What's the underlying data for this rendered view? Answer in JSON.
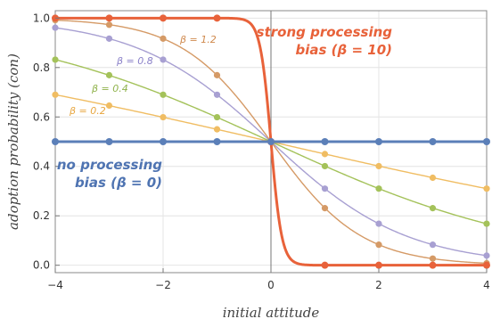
{
  "chart_data": {
    "type": "line",
    "xlabel": "initial attitude",
    "ylabel": "adoption probability (con)",
    "xlim": [
      -4,
      4
    ],
    "ylim": [
      -0.03,
      1.03
    ],
    "x_ticks": [
      -4,
      -2,
      0,
      2,
      4
    ],
    "x_tick_labels": [
      "−4",
      "−2",
      "0",
      "2",
      "4"
    ],
    "y_ticks": [
      0,
      0.2,
      0.4,
      0.6,
      0.8,
      1.0
    ],
    "y_tick_labels": [
      "0.0",
      "0.2",
      "0.4",
      "0.6",
      "0.8",
      "1.0"
    ],
    "grid": true,
    "points_x": [
      -4,
      -3,
      -2,
      -1,
      0,
      1,
      2,
      3,
      4
    ],
    "series": [
      {
        "label": "no processing bias (β = 0)",
        "beta": 0,
        "color": "#5b7fb8",
        "strong": true,
        "values": [
          0.5,
          0.5,
          0.5,
          0.5,
          0.5,
          0.5,
          0.5,
          0.5,
          0.5
        ]
      },
      {
        "label": "β = 0.2",
        "beta": 0.2,
        "color": "#f0bd63",
        "strong": false,
        "values": [
          0.69,
          0.646,
          0.599,
          0.55,
          0.5,
          0.45,
          0.401,
          0.354,
          0.31
        ]
      },
      {
        "label": "β = 0.4",
        "beta": 0.4,
        "color": "#a4c25a",
        "strong": false,
        "values": [
          0.832,
          0.769,
          0.69,
          0.599,
          0.5,
          0.401,
          0.31,
          0.231,
          0.168
        ]
      },
      {
        "label": "β = 0.8",
        "beta": 0.8,
        "color": "#a8a0d2",
        "strong": false,
        "values": [
          0.961,
          0.917,
          0.832,
          0.69,
          0.5,
          0.31,
          0.168,
          0.083,
          0.039
        ]
      },
      {
        "label": "β = 1.2",
        "beta": 1.2,
        "color": "#d59a66",
        "strong": false,
        "values": [
          0.992,
          0.973,
          0.917,
          0.769,
          0.5,
          0.231,
          0.083,
          0.027,
          0.008
        ]
      },
      {
        "label": "strong processing bias (β = 10)",
        "beta": 10,
        "color": "#e8623a",
        "strong": true,
        "values": [
          1.0,
          1.0,
          1.0,
          1.0,
          0.5,
          0.0,
          0.0,
          0.0,
          0.0
        ]
      }
    ],
    "annotations": {
      "strong_line1": "strong processing",
      "strong_line2": "bias (β = 10)",
      "none_line1": "no processing",
      "none_line2": "bias (β = 0)",
      "beta_12": "β = 1.2",
      "beta_08": "β = 0.8",
      "beta_04": "β = 0.4",
      "beta_02": "β = 0.2"
    }
  }
}
